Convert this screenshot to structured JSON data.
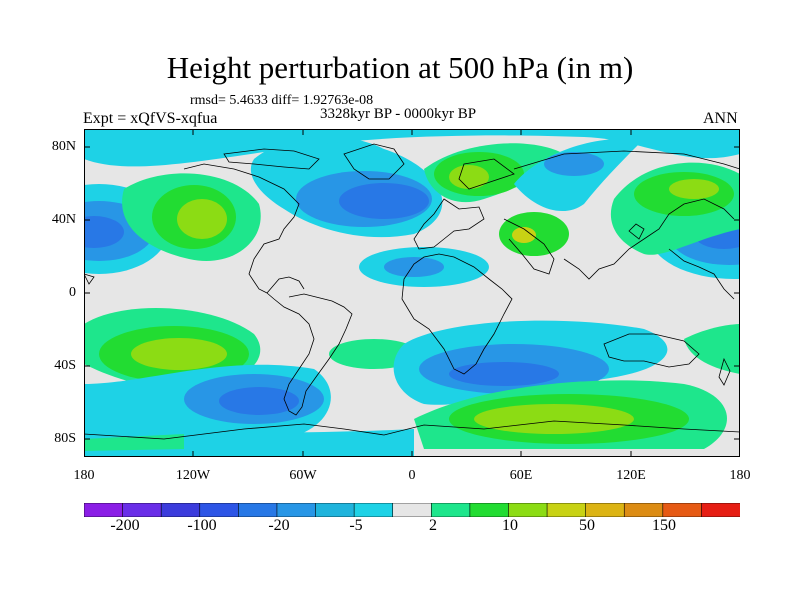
{
  "title": "Height perturbation at 500 hPa (in m)",
  "stats_line": "rmsd= 5.4633 diff= 1.92763e-08",
  "period": "3328kyr BP - 0000kyr BP",
  "experiment": "Expt = xQfVS-xqfua",
  "season": "ANN",
  "lat_labels": [
    "80N",
    "40N",
    "0",
    "40S",
    "80S"
  ],
  "lon_labels": [
    "180",
    "120W",
    "60W",
    "0",
    "60E",
    "120E",
    "180"
  ],
  "colorbar": {
    "labels": [
      "-200",
      "-100",
      "-20",
      "-5",
      "2",
      "10",
      "50",
      "150"
    ],
    "colors": [
      "#8b1ee6",
      "#6a2ee8",
      "#3c3cdc",
      "#2d55e6",
      "#2878e6",
      "#2896e6",
      "#1fb4dc",
      "#1ed2e6",
      "#e6e6e6",
      "#1ee68c",
      "#22dc32",
      "#8cdc14",
      "#c8d214",
      "#dcb414",
      "#dc8c14",
      "#e65a14",
      "#e61e14"
    ]
  }
}
